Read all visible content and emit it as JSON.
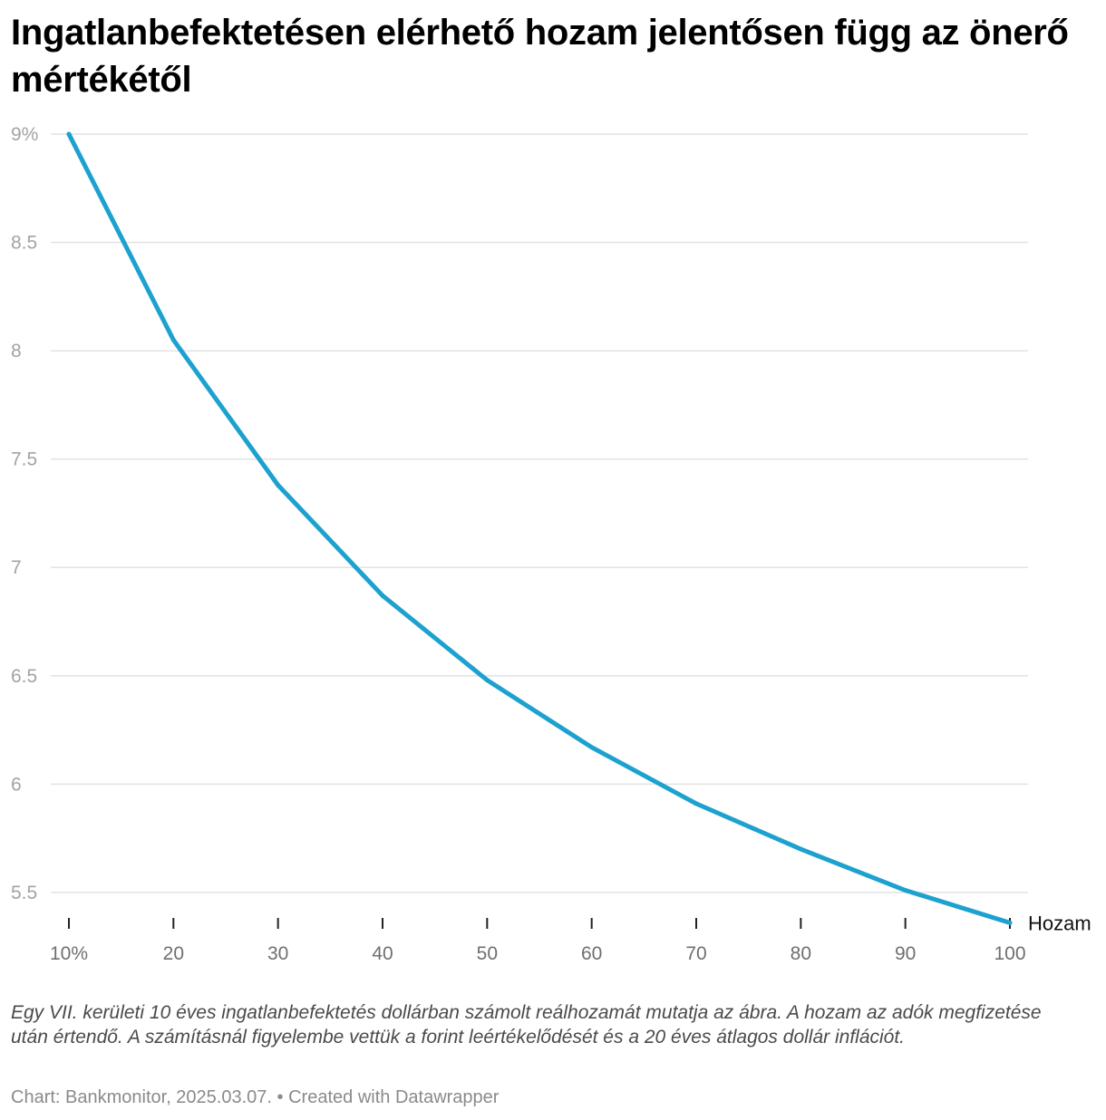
{
  "chart_data": {
    "type": "line",
    "title": "Ingatlanbefektetésen elérhető hozam jelentősen függ az önerő mértékétől",
    "x": [
      10,
      20,
      30,
      40,
      50,
      60,
      70,
      80,
      90,
      100
    ],
    "x_tick_labels": [
      "10%",
      "20",
      "30",
      "40",
      "50",
      "60",
      "70",
      "80",
      "90",
      "100"
    ],
    "y_tick_values": [
      5.5,
      6,
      6.5,
      7,
      7.5,
      8,
      8.5,
      9
    ],
    "y_tick_labels": [
      "5.5",
      "6",
      "6.5",
      "7",
      "7.5",
      "8",
      "8.5",
      "9%"
    ],
    "ylim": [
      5.37,
      9.0
    ],
    "xlim": [
      10,
      100
    ],
    "series": [
      {
        "name": "Hozam",
        "color": "#1da1cf",
        "values": [
          9.0,
          8.05,
          7.38,
          6.87,
          6.48,
          6.17,
          5.91,
          5.7,
          5.51,
          5.36
        ]
      }
    ],
    "grid": true,
    "legend": "end-of-line label",
    "xlabel": "",
    "ylabel": ""
  },
  "notes": "Egy VII. kerületi 10 éves ingatlanbefektetés dollárban számolt reálhozamát mutatja az ábra. A hozam az adók megfizetése után értendő. A számításnál figyelembe vettük a forint leértékelődését és a 20 éves átlagos dollár inflációt.",
  "footer": {
    "source": "Chart: Bankmonitor, 2025.03.07.",
    "separator": "•",
    "credit": "Created with Datawrapper"
  }
}
